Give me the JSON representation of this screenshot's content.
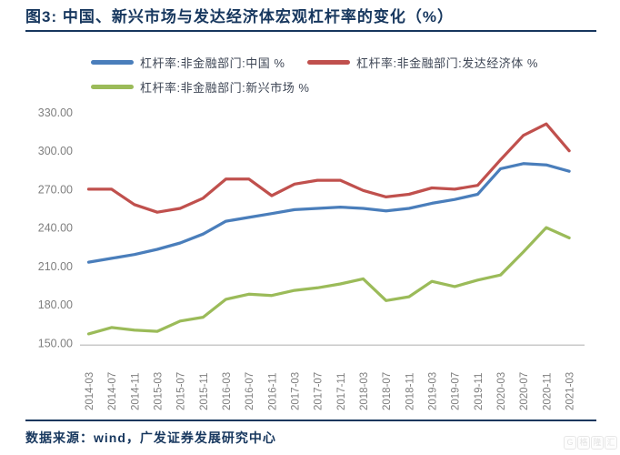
{
  "header": {
    "title": "图3:  中国、新兴市场与发达经济体宏观杠杆率的变化（%）"
  },
  "legend": [
    {
      "label": "杠杆率:非金融部门:中国 %",
      "color": "#4a7ebb"
    },
    {
      "label": "杠杆率:非金融部门:发达经济体 %",
      "color": "#c0504d"
    },
    {
      "label": "杠杆率:非金融部门:新兴市场 %",
      "color": "#9bbb59"
    }
  ],
  "footer": {
    "source": "数据来源：wind，广发证券发展研究中心"
  },
  "watermark": "G格隆汇",
  "chart_data": {
    "type": "line",
    "title": "图3: 中国、新兴市场与发达经济体宏观杠杆率的变化（%）",
    "xlabel": "",
    "ylabel": "",
    "ylim": [
      150,
      330
    ],
    "ytick_step": 30,
    "ytick_format": "two-decimals",
    "grid": false,
    "legend_position": "top",
    "axis_text_color": "#7f7f7f",
    "axis_line_color": "#c9c9c9",
    "categories": [
      "2014-03",
      "2014-07",
      "2014-11",
      "2015-03",
      "2015-07",
      "2015-11",
      "2016-03",
      "2016-07",
      "2016-11",
      "2017-03",
      "2017-07",
      "2017-11",
      "2018-03",
      "2018-07",
      "2018-11",
      "2019-03",
      "2019-07",
      "2019-11",
      "2020-03",
      "2020-07",
      "2020-11",
      "2021-03"
    ],
    "series": [
      {
        "name": "杠杆率:非金融部门:中国 %",
        "key": "china",
        "color": "#4a7ebb",
        "values": [
          213,
          216,
          219,
          223,
          228,
          235,
          245,
          248,
          251,
          254,
          255,
          256,
          255,
          253,
          255,
          259,
          262,
          266,
          286,
          290,
          289,
          284
        ]
      },
      {
        "name": "杠杆率:非金融部门:发达经济体 %",
        "key": "developed-economies",
        "color": "#c0504d",
        "values": [
          270,
          270,
          258,
          252,
          255,
          263,
          278,
          278,
          265,
          274,
          277,
          277,
          269,
          264,
          266,
          271,
          270,
          273,
          293,
          312,
          321,
          300
        ]
      },
      {
        "name": "杠杆率:非金融部门:新兴市场 %",
        "key": "emerging-markets",
        "color": "#9bbb59",
        "values": [
          157,
          162,
          160,
          159,
          167,
          170,
          184,
          188,
          187,
          191,
          193,
          196,
          200,
          183,
          186,
          198,
          194,
          199,
          203,
          221,
          240,
          232
        ]
      }
    ]
  }
}
